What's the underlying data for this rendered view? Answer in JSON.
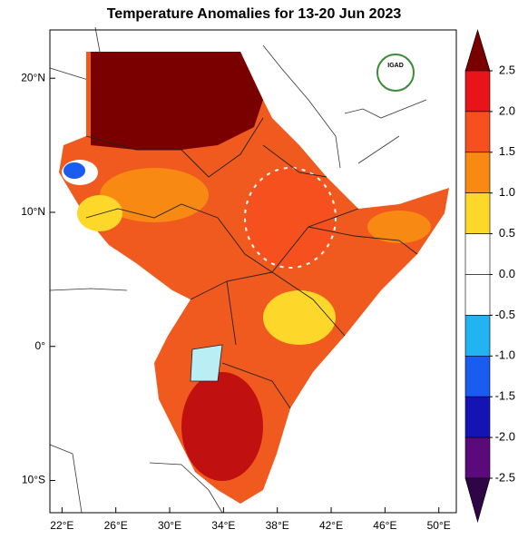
{
  "map": {
    "title": "Temperature Anomalies for 13-20 Jun 2023",
    "logo_text": "IGAD",
    "xlim": [
      21.1,
      51.3
    ],
    "ylim": [
      -12.4,
      23.6
    ],
    "lon_ticks": [
      {
        "value": 22,
        "label": "22°E"
      },
      {
        "value": 26,
        "label": "26°E"
      },
      {
        "value": 30,
        "label": "30°E"
      },
      {
        "value": 34,
        "label": "34°E"
      },
      {
        "value": 38,
        "label": "38°E"
      },
      {
        "value": 42,
        "label": "42°E"
      },
      {
        "value": 46,
        "label": "46°E"
      },
      {
        "value": 50,
        "label": "50°E"
      }
    ],
    "lat_ticks": [
      {
        "value": 20,
        "label": "20°N"
      },
      {
        "value": 10,
        "label": "10°N"
      },
      {
        "value": 0,
        "label": "0°"
      },
      {
        "value": -10,
        "label": "10°S"
      }
    ],
    "colorbar": {
      "ticks": [
        {
          "value": 2.5,
          "label": "2.5"
        },
        {
          "value": 2.0,
          "label": "2.0"
        },
        {
          "value": 1.5,
          "label": "1.5"
        },
        {
          "value": 1.0,
          "label": "1.0"
        },
        {
          "value": 0.5,
          "label": "0.5"
        },
        {
          "value": 0.0,
          "label": "0.0"
        },
        {
          "value": -0.5,
          "label": "-0.5"
        },
        {
          "value": -1.0,
          "label": "-1.0"
        },
        {
          "value": -1.5,
          "label": "-1.5"
        },
        {
          "value": -2.0,
          "label": "-2.0"
        },
        {
          "value": -2.5,
          "label": "-2.5"
        }
      ],
      "colors": [
        "#7a0000",
        "#e8141a",
        "#f5501e",
        "#f88a14",
        "#fdd82a",
        "#ffffff",
        "#ffffff",
        "#22b4f0",
        "#1a5cf0",
        "#1414b4",
        "#5a0a7a",
        "#2e0646"
      ]
    }
  }
}
